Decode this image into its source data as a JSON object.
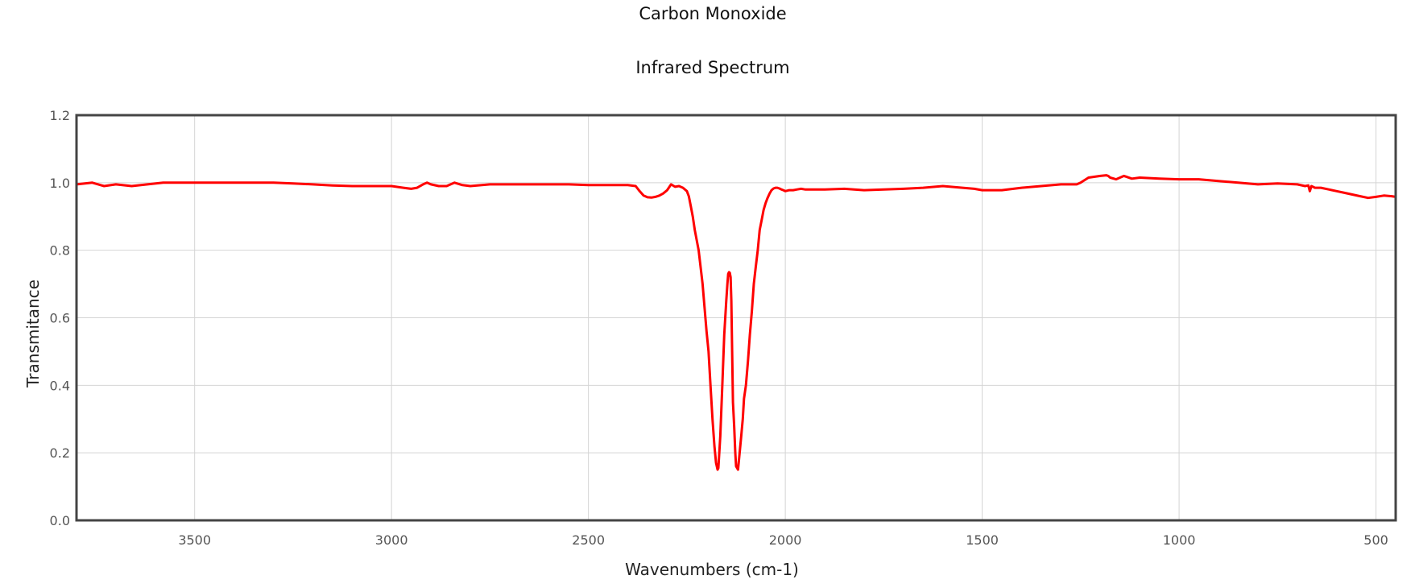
{
  "chart_data": {
    "type": "line",
    "title": "Carbon Monoxide",
    "subtitle": "Infrared Spectrum",
    "xlabel": "Wavenumbers (cm-1)",
    "ylabel": "Transmitance",
    "xlim": [
      3800,
      450
    ],
    "ylim": [
      0,
      1.2
    ],
    "x_reversed": true,
    "grid": true,
    "legend": "none",
    "x_ticks": [
      3500,
      3000,
      2500,
      2000,
      1500,
      1000,
      500
    ],
    "y_ticks": [
      0.0,
      0.2,
      0.4,
      0.6,
      0.8,
      1.0,
      1.2
    ],
    "x_tick_labels": [
      "3500",
      "3000",
      "2500",
      "2000",
      "1500",
      "1000",
      "500"
    ],
    "y_tick_labels": [
      "0.0",
      "0.2",
      "0.4",
      "0.6",
      "0.8",
      "1.0",
      "1.2"
    ],
    "series": [
      {
        "color": "#ff0000",
        "x": [
          3800,
          3760,
          3730,
          3700,
          3660,
          3620,
          3580,
          3540,
          3500,
          3450,
          3400,
          3350,
          3300,
          3250,
          3200,
          3150,
          3100,
          3050,
          3000,
          2970,
          2950,
          2935,
          2920,
          2910,
          2900,
          2880,
          2860,
          2850,
          2840,
          2820,
          2800,
          2750,
          2700,
          2650,
          2600,
          2550,
          2500,
          2450,
          2400,
          2380,
          2370,
          2360,
          2350,
          2340,
          2330,
          2320,
          2310,
          2300,
          2290,
          2280,
          2270,
          2260,
          2250,
          2245,
          2240,
          2235,
          2230,
          2220,
          2210,
          2200,
          2195,
          2190,
          2185,
          2180,
          2176,
          2172,
          2170,
          2165,
          2160,
          2155,
          2150,
          2147,
          2145,
          2143,
          2141,
          2139,
          2137,
          2135,
          2133,
          2130,
          2127,
          2125,
          2120,
          2116,
          2112,
          2108,
          2105,
          2100,
          2095,
          2090,
          2085,
          2080,
          2075,
          2070,
          2065,
          2060,
          2055,
          2050,
          2045,
          2040,
          2035,
          2030,
          2025,
          2020,
          2015,
          2010,
          2005,
          2000,
          1990,
          1980,
          1970,
          1960,
          1950,
          1900,
          1850,
          1800,
          1750,
          1700,
          1650,
          1600,
          1550,
          1520,
          1500,
          1450,
          1400,
          1350,
          1300,
          1260,
          1250,
          1230,
          1200,
          1185,
          1180,
          1175,
          1160,
          1140,
          1120,
          1100,
          1050,
          1000,
          950,
          900,
          850,
          800,
          750,
          700,
          680,
          672,
          668,
          664,
          655,
          640,
          620,
          600,
          580,
          560,
          540,
          520,
          500,
          480,
          460,
          450
        ],
        "y": [
          0.995,
          1.0,
          0.99,
          0.995,
          0.99,
          0.995,
          1.0,
          1.0,
          1.0,
          1.0,
          1.0,
          1.0,
          1.0,
          0.998,
          0.995,
          0.992,
          0.99,
          0.99,
          0.99,
          0.985,
          0.982,
          0.985,
          0.995,
          1.0,
          0.995,
          0.99,
          0.99,
          0.995,
          1.0,
          0.993,
          0.99,
          0.995,
          0.995,
          0.995,
          0.995,
          0.995,
          0.993,
          0.993,
          0.993,
          0.99,
          0.975,
          0.962,
          0.957,
          0.956,
          0.958,
          0.962,
          0.968,
          0.978,
          0.995,
          0.988,
          0.99,
          0.985,
          0.975,
          0.96,
          0.93,
          0.9,
          0.86,
          0.8,
          0.7,
          0.56,
          0.5,
          0.4,
          0.3,
          0.22,
          0.17,
          0.15,
          0.155,
          0.25,
          0.4,
          0.55,
          0.65,
          0.7,
          0.73,
          0.735,
          0.733,
          0.72,
          0.65,
          0.5,
          0.35,
          0.28,
          0.2,
          0.16,
          0.15,
          0.2,
          0.25,
          0.3,
          0.36,
          0.4,
          0.47,
          0.55,
          0.62,
          0.7,
          0.75,
          0.8,
          0.86,
          0.89,
          0.92,
          0.94,
          0.955,
          0.968,
          0.978,
          0.983,
          0.985,
          0.985,
          0.983,
          0.98,
          0.978,
          0.975,
          0.978,
          0.978,
          0.98,
          0.982,
          0.98,
          0.98,
          0.982,
          0.978,
          0.98,
          0.982,
          0.985,
          0.99,
          0.985,
          0.982,
          0.978,
          0.978,
          0.985,
          0.99,
          0.995,
          0.995,
          1.0,
          1.015,
          1.02,
          1.022,
          1.02,
          1.015,
          1.01,
          1.02,
          1.012,
          1.015,
          1.012,
          1.01,
          1.01,
          1.005,
          1.0,
          0.995,
          0.998,
          0.995,
          0.99,
          0.992,
          0.975,
          0.99,
          0.985,
          0.985,
          0.98,
          0.975,
          0.97,
          0.965,
          0.96,
          0.955,
          0.958,
          0.962,
          0.96,
          0.958
        ]
      }
    ]
  }
}
